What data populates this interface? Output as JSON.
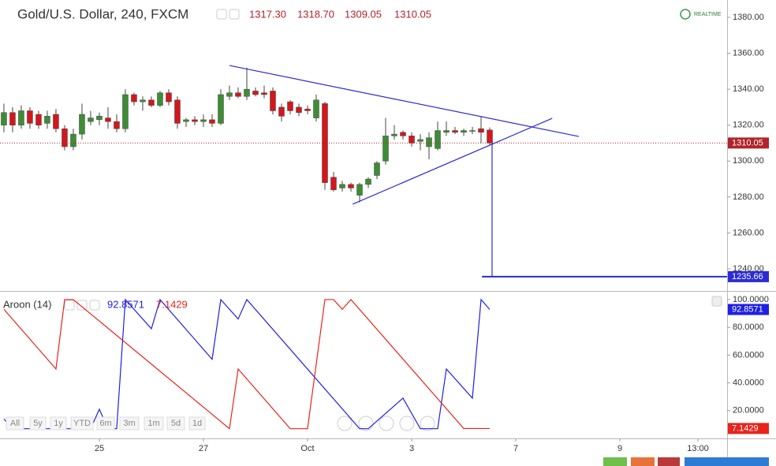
{
  "chart_data": [
    {
      "type": "candlestick",
      "title": "Gold/U.S. Dollar, 240, FXCM",
      "status": "REALTIME",
      "ohlc_labels": [
        "1317.30",
        "1318.70",
        "1309.05",
        "1310.05"
      ],
      "open": [
        1320,
        1327,
        1320,
        1328,
        1326,
        1321,
        1326,
        1318,
        1308,
        1315,
        1322,
        1323,
        1324,
        1322,
        1318,
        1337,
        1333,
        1334,
        1331,
        1338,
        1334,
        1322,
        1323,
        1322,
        1323,
        1321,
        1336,
        1338,
        1336,
        1339,
        1338,
        1339,
        1330,
        1333,
        1330,
        1329,
        1324,
        1332,
        1291,
        1285,
        1287,
        1281,
        1287,
        1292,
        1300,
        1314,
        1316,
        1314,
        1311,
        1308,
        1307,
        1316,
        1317,
        1316,
        1317,
        1318,
        1317.3
      ],
      "high": [
        1332,
        1330,
        1331,
        1330,
        1328,
        1328,
        1329,
        1320,
        1318,
        1332,
        1328,
        1327,
        1330,
        1326,
        1340,
        1338,
        1336,
        1336,
        1339,
        1340,
        1336,
        1324,
        1325,
        1326,
        1326,
        1340,
        1342,
        1341,
        1352,
        1341,
        1342,
        1341,
        1332,
        1334,
        1332,
        1331,
        1337,
        1333,
        1294,
        1289,
        1288,
        1288,
        1291,
        1300,
        1324,
        1320,
        1317,
        1316,
        1315,
        1316,
        1322,
        1322,
        1319,
        1318,
        1319,
        1325,
        1318.7
      ],
      "low": [
        1316,
        1316,
        1318,
        1318,
        1318,
        1318,
        1316,
        1306,
        1306,
        1312,
        1320,
        1320,
        1318,
        1316,
        1316,
        1331,
        1328,
        1330,
        1330,
        1331,
        1318,
        1319,
        1320,
        1319,
        1319,
        1320,
        1334,
        1335,
        1334,
        1336,
        1335,
        1326,
        1322,
        1326,
        1325,
        1326,
        1322,
        1284,
        1283,
        1283,
        1283,
        1277,
        1285,
        1290,
        1298,
        1312,
        1312,
        1308,
        1306,
        1301,
        1306,
        1314,
        1315,
        1314,
        1315,
        1310,
        1309.05
      ],
      "close": [
        1327,
        1320,
        1328,
        1321,
        1320,
        1325,
        1318,
        1308,
        1315,
        1326,
        1324,
        1325,
        1322,
        1318,
        1337,
        1333,
        1334,
        1331,
        1338,
        1333,
        1321,
        1323,
        1322,
        1323,
        1321,
        1337,
        1338,
        1336,
        1340,
        1337,
        1337,
        1328,
        1325,
        1328,
        1327,
        1328,
        1334,
        1288,
        1284,
        1287,
        1285,
        1287,
        1290,
        1299,
        1314,
        1315,
        1314,
        1310,
        1312,
        1313,
        1317,
        1317,
        1316,
        1317,
        1317,
        1316,
        1310.05
      ],
      "up_color": "#3e8c35",
      "down_color": "#d2171d",
      "price_line_color": "#b2232a",
      "xlim": [
        -0.45,
        83.36
      ],
      "xticks": [
        {
          "value": 11,
          "label": "25"
        },
        {
          "value": 23,
          "label": "27"
        },
        {
          "value": 35,
          "label": "Oct"
        },
        {
          "value": 47,
          "label": "3"
        },
        {
          "value": 59,
          "label": "7"
        },
        {
          "value": 71,
          "label": "9"
        },
        {
          "value": 80,
          "label": "13:00"
        }
      ],
      "ylim": [
        1228.15,
        1389.65
      ],
      "yticks": [
        {
          "value": 1380,
          "label": "1380.00"
        },
        {
          "value": 1360,
          "label": "1360.00"
        },
        {
          "value": 1340,
          "label": "1340.00"
        },
        {
          "value": 1320,
          "label": "1320.00"
        },
        {
          "value": 1300,
          "label": "1300.00"
        },
        {
          "value": 1280,
          "label": "1280.00"
        },
        {
          "value": 1260,
          "label": "1260.00"
        },
        {
          "value": 1240,
          "label": "1240.00"
        }
      ],
      "drawings": [
        {
          "type": "trendline",
          "color": "#2b2bd6",
          "x": [
            26,
            66.27
          ],
          "values": [
            1353.2,
            1313.7
          ]
        },
        {
          "type": "trendline",
          "color": "#2b2bd6",
          "x": [
            40.2,
            63.2
          ],
          "values": [
            1276.0,
            1323.8
          ]
        },
        {
          "type": "projection",
          "color": "#2b2bd6",
          "x": 56.27,
          "start_x": 55.1,
          "value": 1235.66
        }
      ]
    },
    {
      "type": "line",
      "title": "Aroon (14)",
      "ylim": [
        0,
        104.5
      ],
      "yticks": [
        {
          "value": 100,
          "label": "100.0000"
        },
        {
          "value": 80,
          "label": "80.0000"
        },
        {
          "value": 60,
          "label": "60.0000"
        },
        {
          "value": 40,
          "label": "40.0000"
        },
        {
          "value": 20,
          "label": "20.0000"
        }
      ],
      "series": [
        {
          "color": "#1f1fe6",
          "x": [
            0,
            1,
            10,
            11,
            12,
            13,
            14,
            17,
            18,
            24,
            25,
            27,
            28,
            41,
            42,
            46,
            48,
            50,
            51,
            54,
            55,
            56
          ],
          "values": [
            14,
            7,
            7,
            21,
            7,
            7,
            100,
            79,
            100,
            57,
            100,
            86,
            100,
            7,
            7,
            29,
            7,
            7,
            50,
            29,
            100,
            92.8571
          ]
        },
        {
          "color": "#e8241c",
          "x": [
            0,
            6,
            7,
            8,
            26,
            27,
            33,
            35,
            37,
            38,
            39,
            40,
            53,
            56
          ],
          "values": [
            93,
            50,
            100,
            100,
            7,
            50,
            7,
            7,
            100,
            100,
            93,
            100,
            7.1429,
            7.1429
          ]
        }
      ]
    }
  ],
  "toolbar": {
    "ranges": [
      "All",
      "5y",
      "1y",
      "YTD",
      "6m",
      "3m",
      "1m",
      "5d",
      "1d"
    ]
  }
}
